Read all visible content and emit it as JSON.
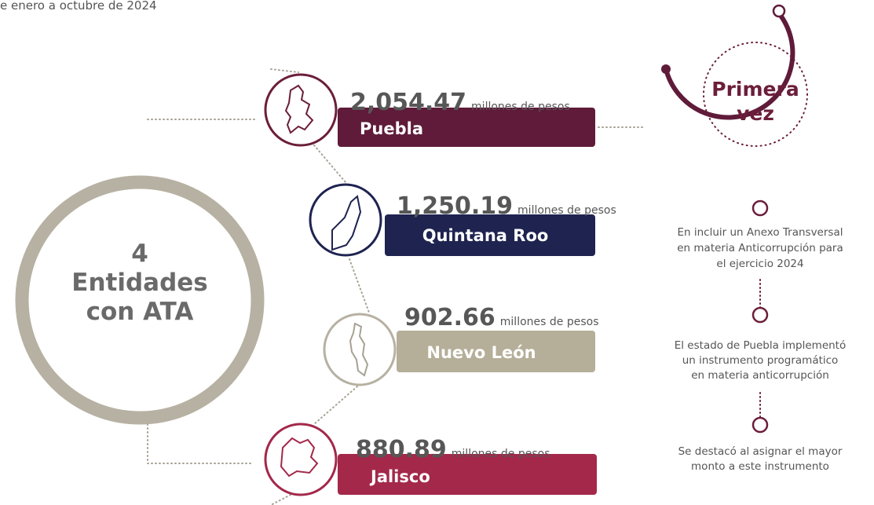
{
  "header": {
    "subtitle": "e enero a octubre de 2024"
  },
  "center": {
    "lines": [
      "4",
      "Entidades",
      "con ATA"
    ]
  },
  "entities": [
    {
      "value": "2,054.47",
      "unit": "millones de pesos",
      "name": "Puebla"
    },
    {
      "value": "1,250.19",
      "unit": "millones de pesos",
      "name": "Quintana Roo"
    },
    {
      "value": "902.66",
      "unit": "millones de pesos",
      "name": "Nuevo León"
    },
    {
      "value": "880.89",
      "unit": "millones de pesos",
      "name": "Jalisco"
    }
  ],
  "highlight": {
    "lines": [
      "Primera",
      "vez"
    ]
  },
  "notes": [
    [
      "En incluir un Anexo Transversal",
      "en materia Anticorrupción para",
      "el ejercicio 2024"
    ],
    [
      "El estado de Puebla  implementó",
      "un  instrumento programático",
      "en materia anticorrupción"
    ],
    [
      "Se destacó al asignar el mayor",
      "monto a este instrumento"
    ]
  ]
}
